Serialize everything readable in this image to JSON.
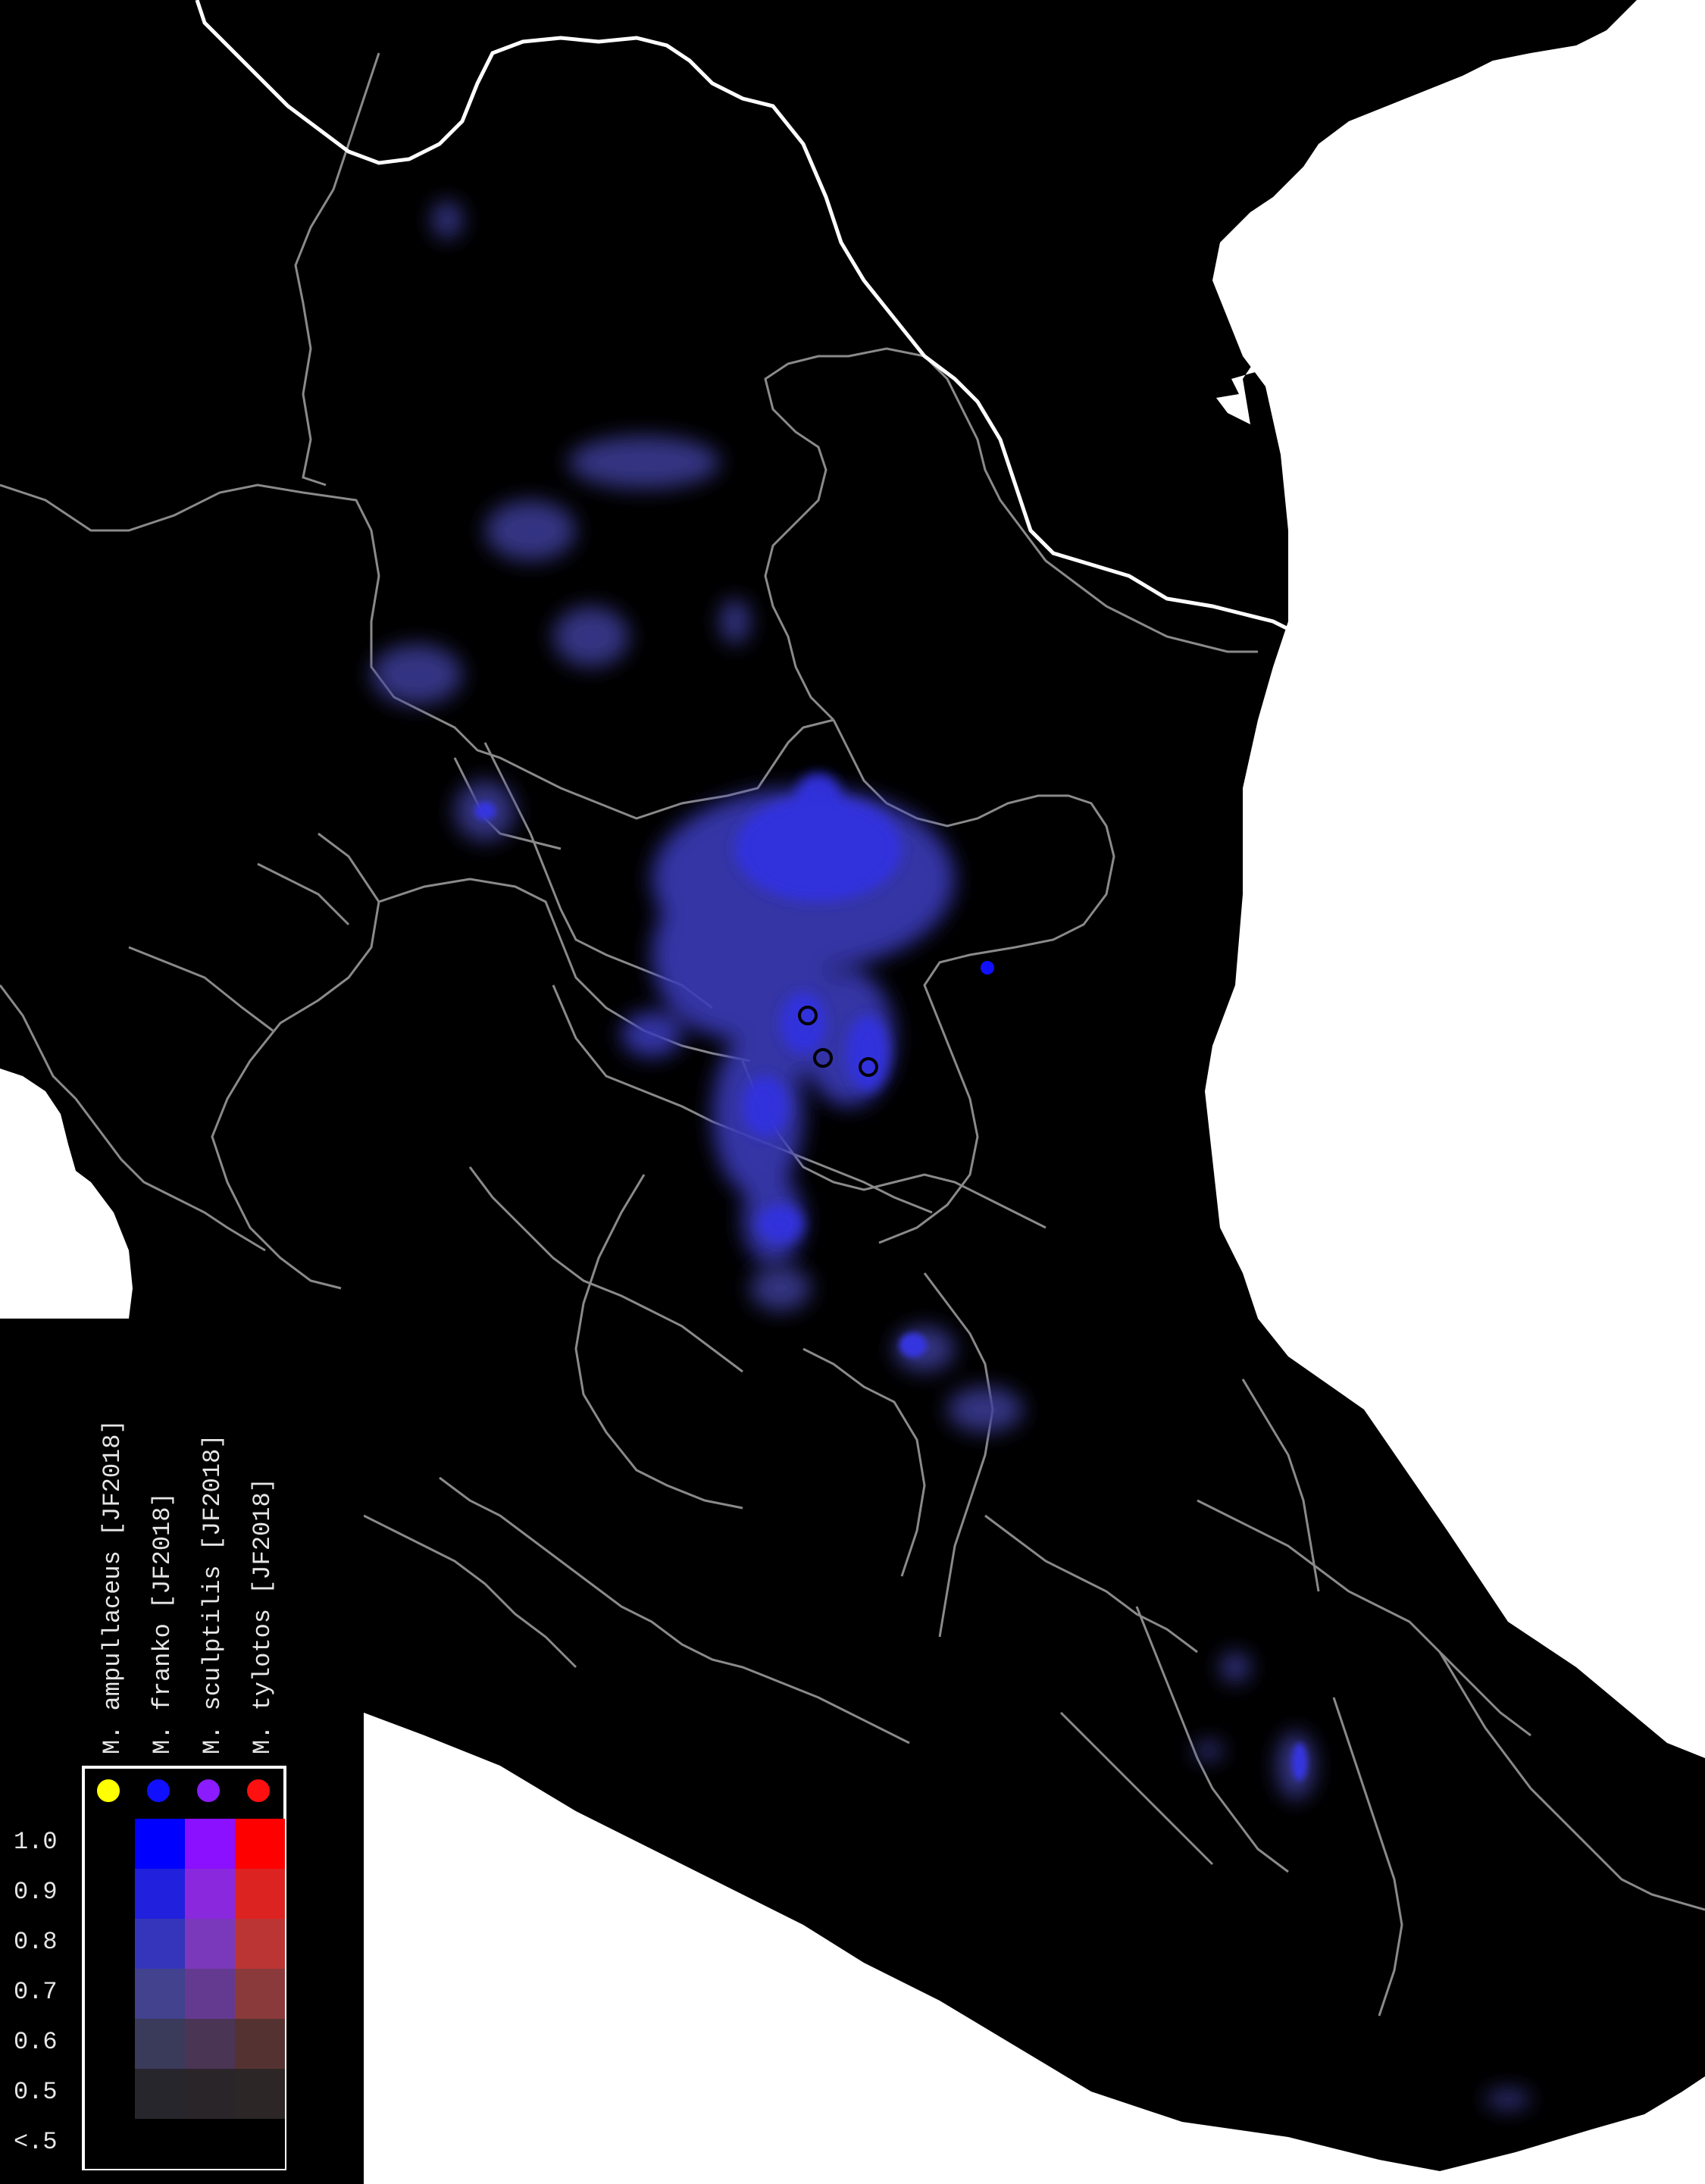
{
  "legend": {
    "species": [
      {
        "label": "M. ampullaceus [JF2018]",
        "color": "#ffff00",
        "ramp": [
          "#000000",
          "#000000",
          "#000000",
          "#000000",
          "#000000",
          "#000000",
          "#000000"
        ]
      },
      {
        "label": "M. franko [JF2018]",
        "color": "#1010ff",
        "ramp": [
          "#0000ff",
          "#2020dd",
          "#3535bb",
          "#42428f",
          "#3a3a5a",
          "#26262c",
          "#000000"
        ]
      },
      {
        "label": "M. sculptilis [JF2018]",
        "color": "#8a1cff",
        "ramp": [
          "#8a10ff",
          "#8a28dd",
          "#7a38bb",
          "#643a90",
          "#4a3555",
          "#2a2529",
          "#000000"
        ]
      },
      {
        "label": "M. tylotos [JF2018]",
        "color": "#ff1010",
        "ramp": [
          "#ff0000",
          "#dd2222",
          "#bb3535",
          "#8a3a3a",
          "#553232",
          "#2c2626",
          "#000000"
        ]
      }
    ],
    "ticks": [
      "1.0",
      "0.9",
      "0.8",
      "0.7",
      "0.6",
      "0.5",
      "<.5"
    ]
  },
  "colors": {
    "background": "#000000",
    "ocean": "#ffffff",
    "borders": "#8a8a8a",
    "national_border": "#ffffff",
    "suitability": "#3c3cd8"
  },
  "occurrences": [
    {
      "species": "M. franko [JF2018]",
      "symbol": "filled-dot"
    },
    {
      "species": "M. franko [JF2018]",
      "symbol": "open-circle"
    },
    {
      "species": "M. franko [JF2018]",
      "symbol": "open-circle"
    },
    {
      "species": "M. franko [JF2018]",
      "symbol": "open-circle"
    }
  ]
}
